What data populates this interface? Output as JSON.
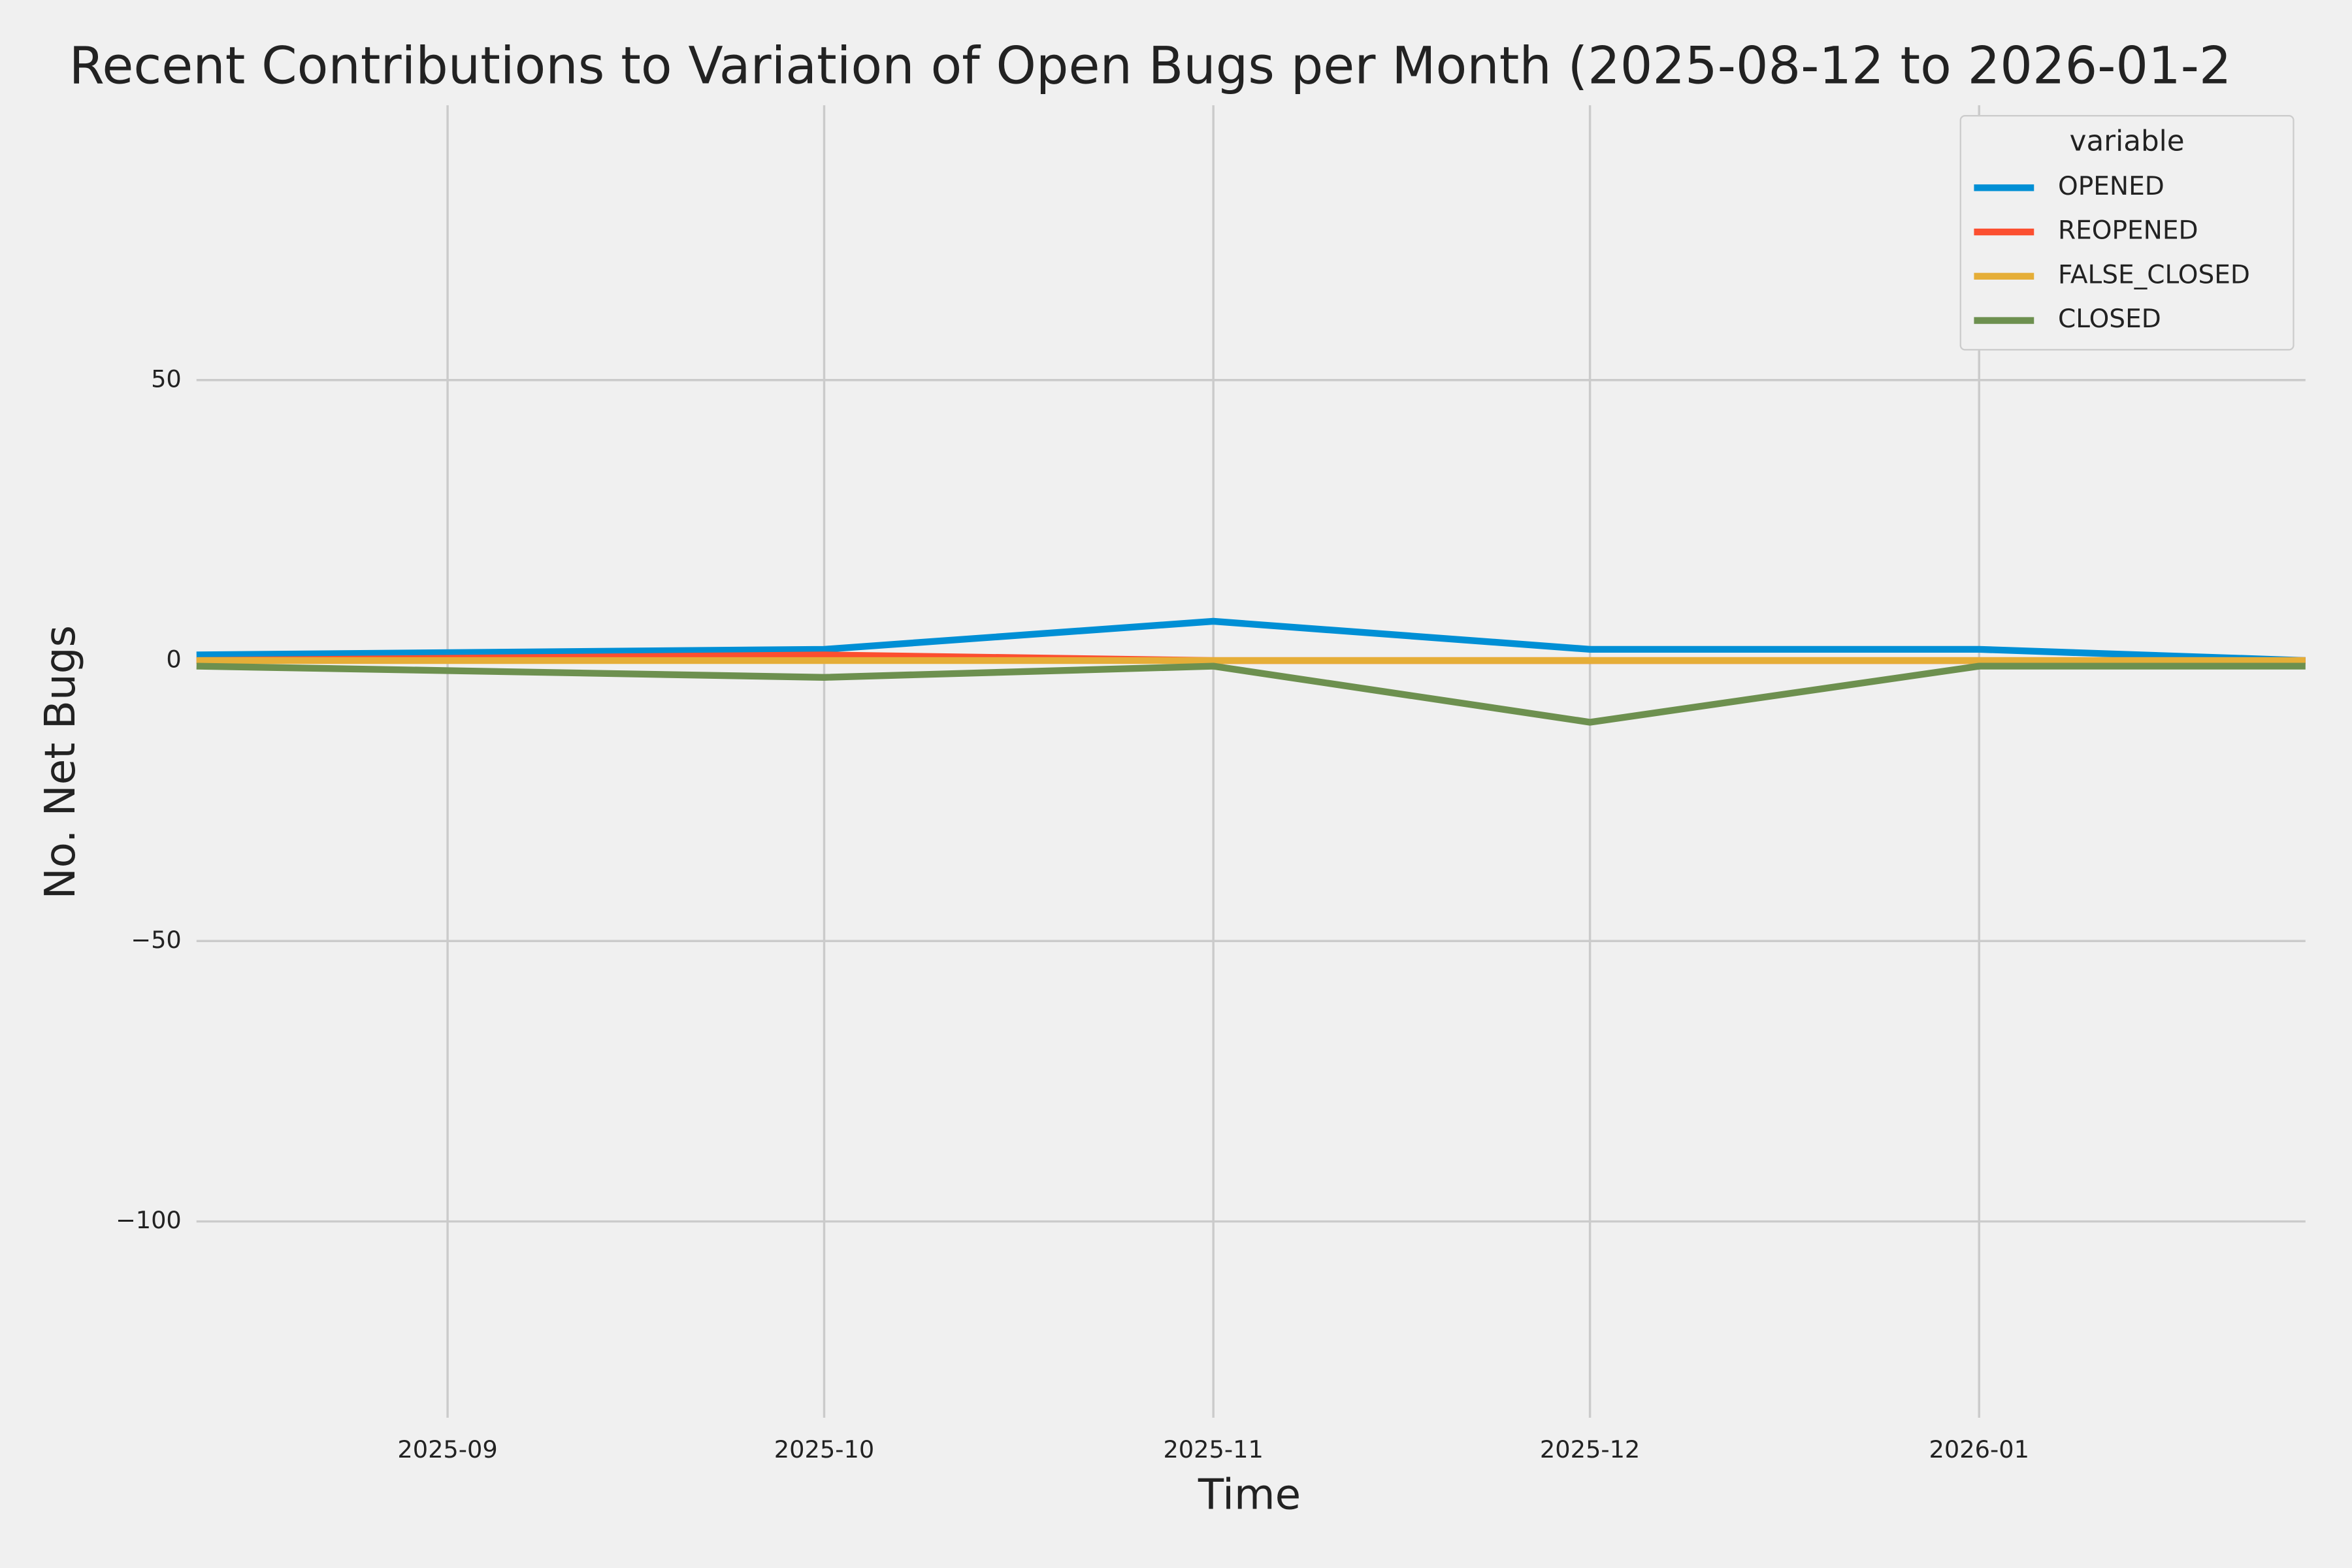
{
  "chart_data": {
    "type": "line",
    "title": "Recent Contributions to Variation of Open Bugs per Month (2025-08-12 to 2026-01-2",
    "x_label": "Time",
    "y_label": "No. Net Bugs",
    "x": [
      "2025-08-12",
      "2025-10-01",
      "2025-11-01",
      "2025-12-01",
      "2026-01-01",
      "2026-01-27"
    ],
    "series": [
      {
        "name": "OPENED",
        "color": "#008fd5",
        "values": [
          1,
          2,
          7,
          2,
          2,
          0
        ]
      },
      {
        "name": "REOPENED",
        "color": "#fc4f30",
        "values": [
          0,
          1,
          0,
          0,
          0,
          0
        ]
      },
      {
        "name": "FALSE_CLOSED",
        "color": "#e5ae38",
        "values": [
          0,
          0,
          0,
          0,
          0,
          0
        ]
      },
      {
        "name": "CLOSED",
        "color": "#6d904f",
        "values": [
          -1,
          -3,
          -1,
          -11,
          -1,
          -1
        ]
      }
    ],
    "xlim": [
      "2025-08-12",
      "2026-01-27"
    ],
    "xticks": [
      {
        "value": "2025-09-01",
        "label": "2025-09"
      },
      {
        "value": "2025-10-01",
        "label": "2025-10"
      },
      {
        "value": "2025-11-01",
        "label": "2025-11"
      },
      {
        "value": "2025-12-01",
        "label": "2025-12"
      },
      {
        "value": "2026-01-01",
        "label": "2026-01"
      }
    ],
    "ylim": [
      -135,
      99
    ],
    "yticks": [
      50,
      0,
      {
        "value": -50,
        "label": "−50"
      },
      {
        "value": -100,
        "label": "−100"
      }
    ],
    "grid": true,
    "legend_title": "variable",
    "legend_position": "upper right"
  }
}
